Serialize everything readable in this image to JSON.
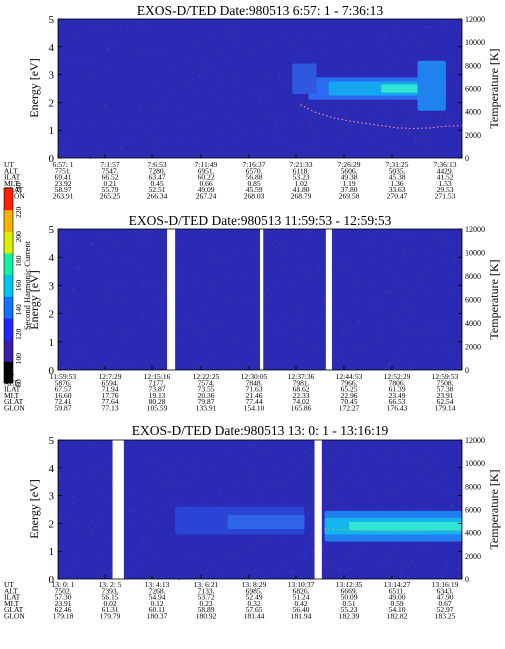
{
  "colorbar": {
    "label": "Second Harmonic Current",
    "ticks": [
      "80",
      "100",
      "120",
      "140",
      "160",
      "180",
      "200",
      "220",
      "240"
    ],
    "stops": [
      "#000000",
      "#3a1ea8",
      "#2424ff",
      "#0f72ff",
      "#00c3f5",
      "#15f0a0",
      "#d8f000",
      "#ffb000",
      "#ff2000"
    ]
  },
  "chart_data": [
    {
      "type": "heatmap",
      "title": "EXOS-D/TED   Date:980513   6:57: 1 - 7:36:13",
      "xlabel": "",
      "ylabel": "Energy [eV]",
      "ylabel_right": "Temperature [K]",
      "ylim": [
        0,
        5
      ],
      "y_ticks": [
        "0",
        "1",
        "2",
        "3",
        "4",
        "5"
      ],
      "ylim_right": [
        0,
        12000
      ],
      "y_ticks_right": [
        "0",
        "2000",
        "4000",
        "6000",
        "8000",
        "10000",
        "12000"
      ],
      "background_color": "#2a2ab4",
      "gaps": [],
      "bands": [
        {
          "x0": 0.62,
          "x1": 0.96,
          "y0": 2.1,
          "y1": 2.9,
          "color": "#2c6cf2"
        },
        {
          "x0": 0.67,
          "x1": 0.96,
          "y0": 2.25,
          "y1": 2.75,
          "color": "#15a6ee"
        },
        {
          "x0": 0.8,
          "x1": 0.95,
          "y0": 2.35,
          "y1": 2.65,
          "color": "#2ee6d2"
        },
        {
          "x0": 0.58,
          "x1": 0.64,
          "y0": 2.3,
          "y1": 3.4,
          "color": "#2f58df"
        },
        {
          "x0": 0.89,
          "x1": 0.96,
          "y0": 1.7,
          "y1": 3.5,
          "color": "#1f82ef"
        }
      ],
      "temperature_series": {
        "name": "",
        "x": [
          0.6,
          0.64,
          0.68,
          0.72,
          0.76,
          0.8,
          0.84,
          0.88,
          0.92,
          0.96,
          1.0
        ],
        "values": [
          4600,
          3900,
          3500,
          3200,
          3000,
          2800,
          2600,
          2550,
          2600,
          2750,
          2800
        ]
      },
      "table": {
        "labels": [
          "UT",
          "ALT",
          "ILAT",
          "MLT",
          "GLAT",
          "GLON"
        ],
        "columns": [
          [
            "6:57: 1",
            "7751.",
            "69.41",
            "23.92",
            "58.97",
            "263.91"
          ],
          [
            "7:1:57",
            "7547.",
            "66.52",
            "0.21",
            "55.79",
            "265.25"
          ],
          [
            "7:6:53",
            "7280.",
            "63.47",
            "0.45",
            "52.51",
            "266.34"
          ],
          [
            "7:11:49",
            "6951.",
            "60.22",
            "0.66",
            "49.09",
            "267.24"
          ],
          [
            "7:16:37",
            "6570.",
            "56.88",
            "0.85",
            "45.59",
            "268.03"
          ],
          [
            "7:21:33",
            "6118.",
            "53.23",
            "1.02",
            "41.80",
            "268.79"
          ],
          [
            "7:26:29",
            "5606.",
            "49.38",
            "1.19",
            "37.80",
            "269.58"
          ],
          [
            "7:31:25",
            "5035.",
            "45.38",
            "1.36",
            "33.63",
            "270.47"
          ],
          [
            "7:36:13",
            "4429.",
            "41.52",
            "1.53",
            "29.53",
            "271.53"
          ]
        ]
      }
    },
    {
      "type": "heatmap",
      "title": "EXOS-D/TED   Date:980513   11:59:53 - 12:59:53",
      "xlabel": "",
      "ylabel": "Energy [eV]",
      "ylabel_right": "Temperature [K]",
      "ylim": [
        0,
        5
      ],
      "y_ticks": [
        "0",
        "1",
        "2",
        "3",
        "4",
        "5"
      ],
      "ylim_right": [
        0,
        12000
      ],
      "y_ticks_right": [
        "0",
        "2000",
        "4000",
        "6000",
        "8000",
        "10000",
        "12000"
      ],
      "background_color": "#2a2ab4",
      "gaps": [
        [
          0.27,
          0.29
        ],
        [
          0.5,
          0.508
        ],
        [
          0.663,
          0.678
        ]
      ],
      "bands": [],
      "temperature_series": null,
      "table": {
        "labels": [
          "UT",
          "ALT",
          "ILAT",
          "MLT",
          "GLAT",
          "GLON"
        ],
        "columns": [
          [
            "11:59:53",
            "5876.",
            "67.57",
            "16.60",
            "72.41",
            "59.87"
          ],
          [
            "12:7:29",
            "6594.",
            "71.94",
            "17.76",
            "77.64",
            "77.13"
          ],
          [
            "12:15:16",
            "7177.",
            "73.87",
            "19.13",
            "80.28",
            "105.59"
          ],
          [
            "12:22:25",
            "7574.",
            "73.55",
            "20.36",
            "79.87",
            "133.91"
          ],
          [
            "12:30:05",
            "7848.",
            "71.63",
            "21.46",
            "77.44",
            "154.10"
          ],
          [
            "12:37:36",
            "7981.",
            "68.62",
            "22.33",
            "74.02",
            "165.86"
          ],
          [
            "12:44:53",
            "7966.",
            "65.25",
            "22.96",
            "70.45",
            "172.27"
          ],
          [
            "12:52:29",
            "7806.",
            "61.39",
            "23.49",
            "66.53",
            "176.43"
          ],
          [
            "12:59:53",
            "7508.",
            "57.38",
            "23.91",
            "62.54",
            "179.14"
          ]
        ]
      }
    },
    {
      "type": "heatmap",
      "title": "EXOS-D/TED   Date:980513   13: 0: 1 - 13:16:19",
      "xlabel": "",
      "ylabel": "Energy [eV]",
      "ylabel_right": "Temperature [K]",
      "ylim": [
        0,
        5
      ],
      "y_ticks": [
        "0",
        "1",
        "2",
        "3",
        "4",
        "5"
      ],
      "ylim_right": [
        0,
        12000
      ],
      "y_ticks_right": [
        "0",
        "2000",
        "4000",
        "6000",
        "8000",
        "10000",
        "12000"
      ],
      "background_color": "#2a2ab4",
      "gaps": [
        [
          0.135,
          0.163
        ],
        [
          0.635,
          0.653
        ]
      ],
      "bands": [
        {
          "x0": 0.29,
          "x1": 0.61,
          "y0": 1.6,
          "y1": 2.6,
          "color": "#2a44d6"
        },
        {
          "x0": 0.42,
          "x1": 0.61,
          "y0": 1.8,
          "y1": 2.3,
          "color": "#2f66e8"
        },
        {
          "x0": 0.66,
          "x1": 1.0,
          "y0": 1.35,
          "y1": 2.45,
          "color": "#1f7ef0"
        },
        {
          "x0": 0.66,
          "x1": 1.0,
          "y0": 1.6,
          "y1": 2.2,
          "color": "#16b4ec"
        },
        {
          "x0": 0.72,
          "x1": 1.0,
          "y0": 1.75,
          "y1": 2.05,
          "color": "#2ee6d2"
        }
      ],
      "temperature_series": {
        "name": "",
        "x": [
          0.66,
          0.72,
          0.78,
          0.84,
          0.9,
          0.96,
          1.0
        ],
        "values": [
          4300,
          4250,
          4200,
          4150,
          4200,
          4250,
          4200
        ]
      },
      "table": {
        "labels": [
          "UT",
          "ALT",
          "ILAT",
          "MLT",
          "GLAT",
          "GLON"
        ],
        "columns": [
          [
            "13: 0: 1",
            "7502.",
            "57.30",
            "23.91",
            "62.46",
            "179.18"
          ],
          [
            "13: 2: 5",
            "7393.",
            "56.15",
            "0.02",
            "61.31",
            "179.79"
          ],
          [
            "13: 4:13",
            "7268.",
            "54.94",
            "0.12",
            "60.11",
            "180.37"
          ],
          [
            "13: 6:21",
            "7133.",
            "53.72",
            "0.23",
            "58.89",
            "180.92"
          ],
          [
            "13: 8:29",
            "6985.",
            "52.49",
            "0.32",
            "57.65",
            "181.44"
          ],
          [
            "13:10:37",
            "6826.",
            "51.24",
            "0.42",
            "56.40",
            "181.94"
          ],
          [
            "13:12:35",
            "6669.",
            "50.09",
            "0.51",
            "55.23",
            "182.39"
          ],
          [
            "13:14:27",
            "6511.",
            "49.00",
            "0.59",
            "54.10",
            "182.82"
          ],
          [
            "13:16:19",
            "6343.",
            "47.90",
            "0.67",
            "52.97",
            "183.25"
          ]
        ]
      }
    }
  ]
}
